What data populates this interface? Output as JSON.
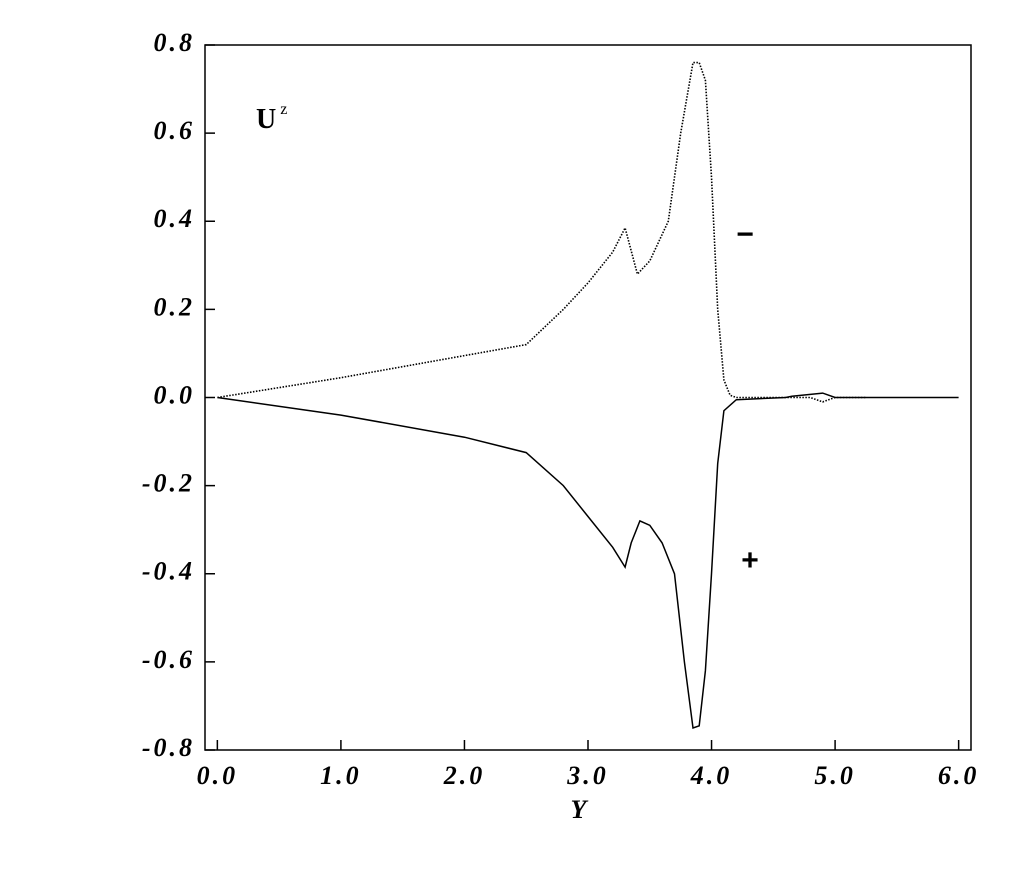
{
  "chart_data": {
    "type": "line",
    "annotation": {
      "text": "U",
      "superscript": "z"
    },
    "x_label": "Y",
    "xlim": [
      -0.1,
      6.1
    ],
    "ylim": [
      -0.8,
      0.8
    ],
    "xticks": [
      {
        "value": 0,
        "label": "0.0"
      },
      {
        "value": 1,
        "label": "1.0"
      },
      {
        "value": 2,
        "label": "2.0"
      },
      {
        "value": 3,
        "label": "3.0"
      },
      {
        "value": 4,
        "label": "4.0"
      },
      {
        "value": 5,
        "label": "5.0"
      },
      {
        "value": 6,
        "label": "6.0"
      }
    ],
    "yticks": [
      0.8,
      0.6,
      0.4,
      0.2,
      {
        "value": 0,
        "label": "0.0"
      },
      -0.2,
      -0.4,
      -0.6,
      -0.8
    ],
    "series": [
      {
        "name": "−",
        "color": "#000000",
        "dash": "dotted",
        "x": [
          0,
          1.0,
          2.0,
          2.5,
          2.8,
          3.0,
          3.2,
          3.3,
          3.4,
          3.5,
          3.65,
          3.75,
          3.85,
          3.9,
          3.95,
          4.0,
          4.05,
          4.1,
          4.15,
          4.2,
          4.8,
          4.9,
          5.0,
          5.25
        ],
        "values": [
          0,
          0.045,
          0.095,
          0.12,
          0.2,
          0.26,
          0.33,
          0.385,
          0.28,
          0.31,
          0.4,
          0.6,
          0.76,
          0.76,
          0.72,
          0.5,
          0.2,
          0.04,
          0.005,
          0,
          0,
          -0.01,
          0,
          0
        ]
      },
      {
        "name": "+",
        "color": "#000000",
        "dash": "solid",
        "x": [
          0,
          1.0,
          2.0,
          2.5,
          2.8,
          3.0,
          3.2,
          3.3,
          3.35,
          3.42,
          3.5,
          3.6,
          3.7,
          3.78,
          3.85,
          3.9,
          3.95,
          4.0,
          4.05,
          4.1,
          4.2,
          4.6,
          4.65,
          4.9,
          5.0,
          6.0
        ],
        "values": [
          0,
          -0.04,
          -0.09,
          -0.125,
          -0.2,
          -0.27,
          -0.34,
          -0.385,
          -0.33,
          -0.28,
          -0.29,
          -0.33,
          -0.4,
          -0.6,
          -0.75,
          -0.745,
          -0.62,
          -0.4,
          -0.15,
          -0.03,
          -0.005,
          0,
          0.003,
          0.01,
          0,
          0
        ]
      }
    ]
  }
}
